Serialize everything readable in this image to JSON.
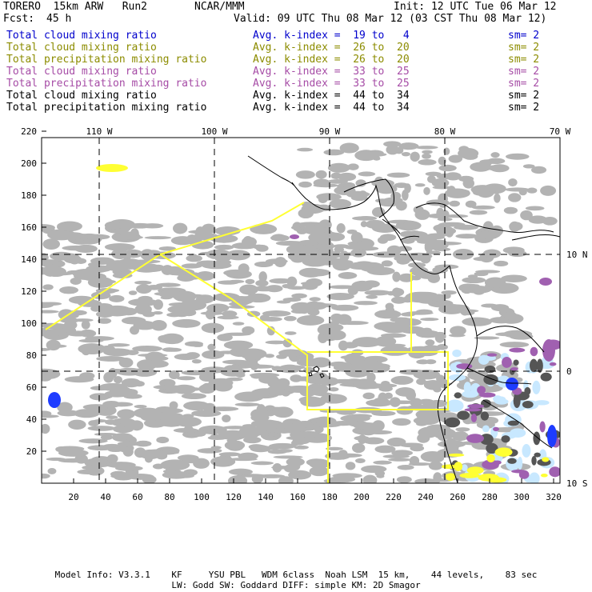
{
  "header": {
    "model": "TORERO  15km ARW   Run2",
    "org": "NCAR/MMM",
    "init": "Init: 12 UTC Tue 06 Mar 12",
    "fcst_label": "Fcst:",
    "fcst_value": "45 h",
    "valid": "Valid: 09 UTC Thu 08 Mar 12 (03 CST Thu 08 Mar 12)"
  },
  "legend": [
    {
      "field": "Total cloud mixing ratio",
      "kindex": "Avg. k-index =  19 to   4",
      "sm": "sm= 2",
      "color": "#0000cc"
    },
    {
      "field": "Total cloud mixing ratio",
      "kindex": "Avg. k-index =  26 to  20",
      "sm": "sm= 2",
      "color": "#8c8c00"
    },
    {
      "field": "Total precipitation mixing ratio",
      "kindex": "Avg. k-index =  26 to  20",
      "sm": "sm= 2",
      "color": "#8c8c00"
    },
    {
      "field": "Total cloud mixing ratio",
      "kindex": "Avg. k-index =  33 to  25",
      "sm": "sm= 2",
      "color": "#a64ca6"
    },
    {
      "field": "Total precipitation mixing ratio",
      "kindex": "Avg. k-index =  33 to  25",
      "sm": "sm= 2",
      "color": "#a64ca6"
    },
    {
      "field": "Total cloud mixing ratio",
      "kindex": "Avg. k-index =  44 to  34",
      "sm": "sm= 2",
      "color": "#000000"
    },
    {
      "field": "Total precipitation mixing ratio",
      "kindex": "Avg. k-index =  44 to  34",
      "sm": "sm= 2",
      "color": "#000000"
    }
  ],
  "map": {
    "top_lon_labels": [
      "110 W",
      "100 W",
      "90 W",
      "80 W",
      "70 W"
    ],
    "right_lat_labels": [
      "10 N",
      "0",
      "10 S"
    ],
    "x_ticks": [
      "20",
      "40",
      "60",
      "80",
      "100",
      "120",
      "140",
      "160",
      "180",
      "200",
      "220",
      "240",
      "260",
      "280",
      "300",
      "320"
    ],
    "y_ticks": [
      "220",
      "200",
      "180",
      "160",
      "140",
      "120",
      "100",
      "80",
      "60",
      "40",
      "20"
    ],
    "colors": {
      "cloud_gray": "#b3b3b3",
      "dark_gray": "#555555",
      "yellow": "#ffff33",
      "purple": "#a060b0",
      "light_blue": "#c8e8ff",
      "blue": "#1e3cff"
    }
  },
  "footer": {
    "line1": "Model Info: V3.3.1    KF     YSU PBL   WDM 6class  Noah LSM  15 km,    44 levels,    83 sec",
    "line2": "LW: Godd SW: Goddard DIFF: simple KM: 2D Smagor"
  }
}
